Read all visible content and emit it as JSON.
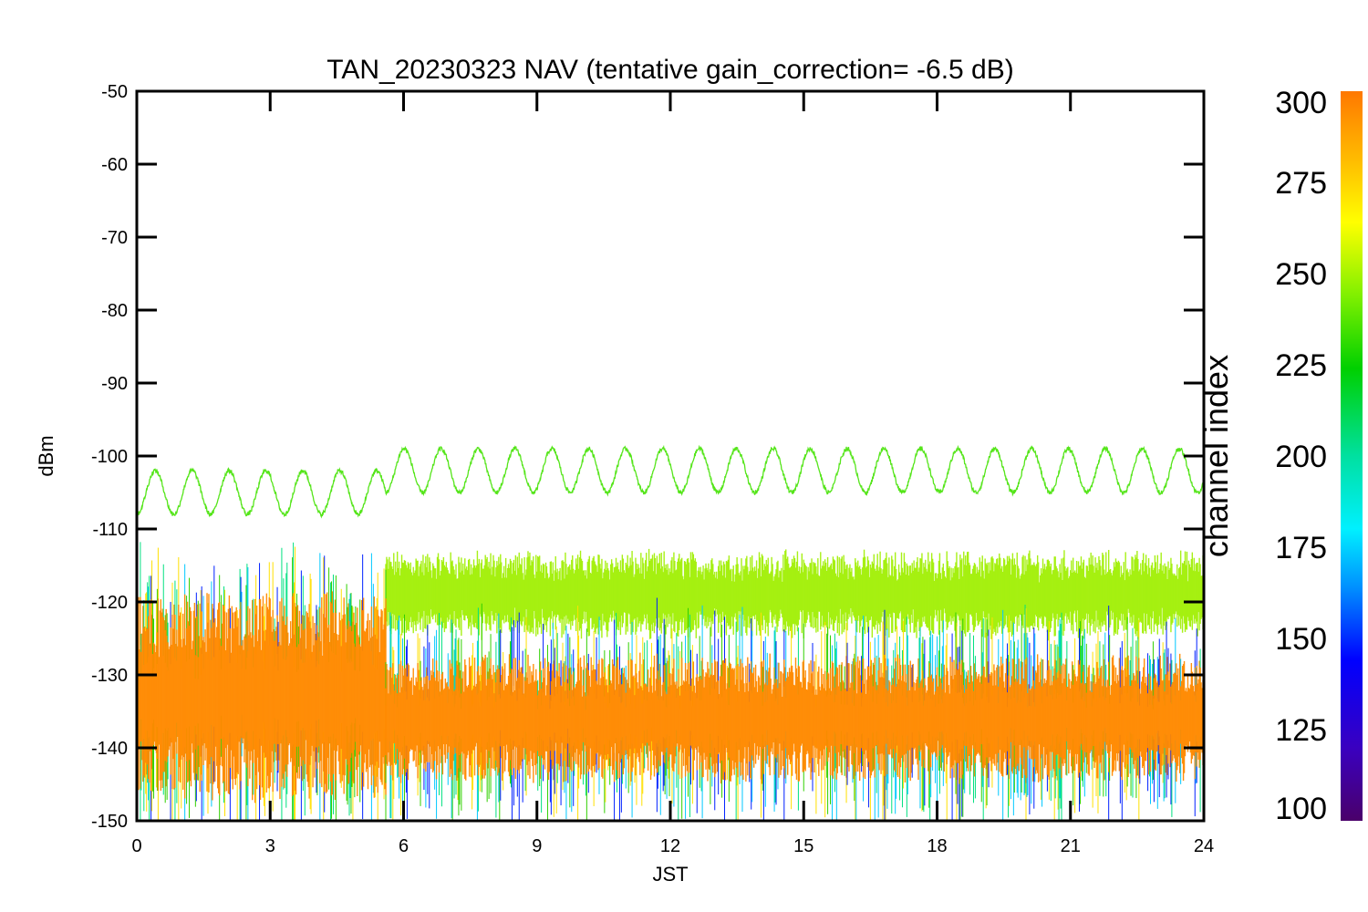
{
  "chart_data": {
    "type": "line",
    "title": "TAN_20230323 NAV (tentative gain_correction= -6.5 dB)",
    "xlabel": "JST",
    "ylabel": "dBm",
    "xlim": [
      0,
      24
    ],
    "ylim": [
      -150,
      -50
    ],
    "x_ticks": [
      0,
      3,
      6,
      9,
      12,
      15,
      18,
      21,
      24
    ],
    "y_ticks": [
      -50,
      -60,
      -70,
      -80,
      -90,
      -100,
      -110,
      -120,
      -130,
      -140,
      -150
    ],
    "grid": false,
    "colorbar": {
      "title": "channel index",
      "range": [
        100,
        300
      ],
      "ticks": [
        300,
        275,
        250,
        225,
        200,
        175,
        150,
        125,
        100
      ]
    },
    "series": [
      {
        "channel_index": 250,
        "color": "#55e51a",
        "description_values": "sinusoidal trace",
        "segments": [
          {
            "x_range": [
              0,
              5.6
            ],
            "center": -105,
            "amplitude": 3,
            "period_h": 0.83
          },
          {
            "x_range": [
              5.6,
              24
            ],
            "center": -102,
            "amplitude": 3,
            "period_h": 0.83
          }
        ],
        "x": [
          0,
          0.4,
          0.8,
          1.2,
          1.6,
          2.0,
          2.5,
          3.0,
          3.3,
          3.7,
          4.1,
          4.5,
          5.0,
          5.5,
          5.6,
          5.7,
          6.2,
          6.6,
          7.0,
          7.5,
          8.0,
          8.3,
          9.1,
          9.9,
          10.8,
          11.6,
          12.4,
          13.3,
          14.1,
          14.9,
          15.8,
          16.6,
          17.4,
          18.3,
          19.1,
          19.9,
          20.8,
          21.6,
          22.4,
          23.3,
          24.0
        ],
        "y": [
          -102,
          -108,
          -102,
          -108,
          -102,
          -108,
          -102,
          -108,
          -101,
          -107,
          -102,
          -108,
          -102,
          -108,
          -108,
          -103,
          -99,
          -104,
          -99,
          -105,
          -99,
          -105,
          -99,
          -105,
          -99,
          -105,
          -99,
          -105,
          -99,
          -105,
          -99,
          -105,
          -99,
          -105,
          -99,
          -105,
          -99,
          -105,
          -99,
          -105,
          -100
        ]
      },
      {
        "channel_index": 265,
        "color": "#a3f00a",
        "band": true,
        "segments": [
          {
            "x_range": [
              5.6,
              24
            ],
            "center": -119,
            "half_width": 4
          }
        ]
      },
      {
        "channel_index": 300,
        "color": "#ff8a00",
        "band": true,
        "segments": [
          {
            "x_range": [
              0,
              5.6
            ],
            "center": -133,
            "half_width": 10
          },
          {
            "x_range": [
              5.6,
              24
            ],
            "center": -136,
            "half_width": 6
          }
        ]
      }
    ]
  }
}
